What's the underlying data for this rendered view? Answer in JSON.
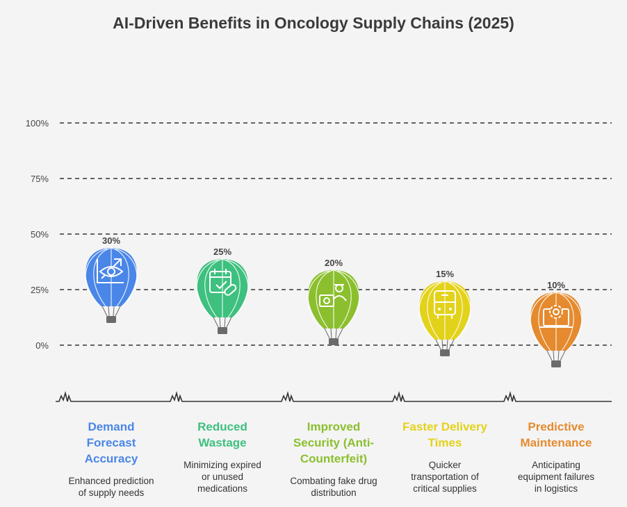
{
  "title": "AI-Driven Benefits in Oncology Supply Chains (2025)",
  "chart_data": {
    "type": "bar",
    "style": "hot-air-balloon pictograph",
    "title": "AI-Driven Benefits in Oncology Supply Chains (2025)",
    "categories": [
      "Demand Forecast Accuracy",
      "Reduced Wastage",
      "Improved Security (Anti-Counterfeit)",
      "Faster Delivery Times",
      "Predictive Maintenance"
    ],
    "values": [
      30,
      25,
      20,
      15,
      10
    ],
    "value_labels": [
      "30%",
      "25%",
      "20%",
      "15%",
      "10%"
    ],
    "y_ticks": [
      "100%",
      "75%",
      "50%",
      "25%",
      "0%"
    ],
    "y_tick_values": [
      100,
      75,
      50,
      25,
      0
    ],
    "ylim": [
      0,
      100
    ],
    "grid": "dashed horizontal"
  },
  "categories": [
    {
      "title": "Demand Forecast Accuracy",
      "title_lines": [
        "Demand",
        "Forecast",
        "Accuracy"
      ],
      "desc_lines": [
        "Enhanced prediction",
        "of supply needs"
      ],
      "color": "#4a86e8",
      "icon": "eye-chart-icon"
    },
    {
      "title": "Reduced Wastage",
      "title_lines": [
        "Reduced",
        "Wastage"
      ],
      "desc_lines": [
        "Minimizing expired",
        "or unused",
        "medications"
      ],
      "color": "#3ec07f",
      "icon": "calendar-pill-icon"
    },
    {
      "title": "Improved Security (Anti-Counterfeit)",
      "title_lines": [
        "Improved",
        "Security (Anti-",
        "Counterfeit)"
      ],
      "desc_lines": [
        "Combating fake drug",
        "distribution"
      ],
      "color": "#8bbf2e",
      "icon": "thief-medkit-icon"
    },
    {
      "title": "Faster Delivery Times",
      "title_lines": [
        "Faster Delivery",
        "Times"
      ],
      "desc_lines": [
        "Quicker",
        "transportation of",
        "critical supplies"
      ],
      "color": "#e3d21a",
      "icon": "bus-icon"
    },
    {
      "title": "Predictive Maintenance",
      "title_lines": [
        "Predictive",
        "Maintenance"
      ],
      "desc_lines": [
        "Anticipating",
        "equipment failures",
        "in logistics"
      ],
      "color": "#e58a2e",
      "icon": "laptop-gear-icon"
    }
  ]
}
